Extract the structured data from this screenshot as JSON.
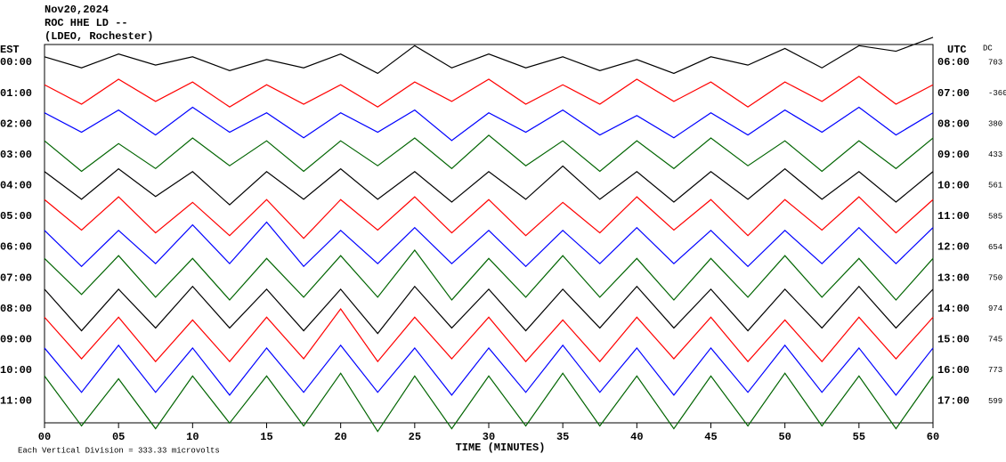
{
  "chart_data": {
    "type": "helicorder",
    "title": "Nov20,2024",
    "subtitle": "ROC HHE LD --",
    "station": "(LDEO, Rochester)",
    "left_axis_label": "EST",
    "right_axis_label": "UTC",
    "dc_label": "DC",
    "xlabel": "TIME (MINUTES)",
    "footnote": "Each Vertical Division =  333.33 microvolts",
    "xlim": [
      0,
      60
    ],
    "xticks": [
      {
        "value": 0,
        "label": "00"
      },
      {
        "value": 5,
        "label": "05"
      },
      10,
      15,
      20,
      25,
      30,
      35,
      40,
      45,
      50,
      55,
      60
    ],
    "x": [
      0,
      2.5,
      5,
      7.5,
      10,
      12.5,
      15,
      17.5,
      20,
      22.5,
      25,
      27.5,
      30,
      32.5,
      35,
      37.5,
      40,
      42.5,
      45,
      47.5,
      50,
      52.5,
      55,
      57.5,
      60
    ],
    "series": [
      {
        "name": "00:00",
        "utc": "06:00",
        "dc": 703,
        "color": "#000000",
        "values": [
          0.2,
          -0.2,
          0.3,
          -0.1,
          0.2,
          -0.3,
          0.1,
          -0.2,
          0.3,
          -0.4,
          0.6,
          -0.2,
          0.3,
          -0.2,
          0.2,
          -0.3,
          0.1,
          -0.4,
          0.2,
          -0.1,
          0.5,
          -0.2,
          0.6,
          0.4,
          0.9
        ]
      },
      {
        "name": "01:00",
        "utc": "07:00",
        "dc": -360,
        "color": "#ff0000",
        "values": [
          0.3,
          -0.4,
          0.5,
          -0.3,
          0.4,
          -0.5,
          0.3,
          -0.4,
          0.3,
          -0.5,
          0.4,
          -0.3,
          0.5,
          -0.4,
          0.3,
          -0.4,
          0.5,
          -0.3,
          0.4,
          -0.5,
          0.4,
          -0.3,
          0.6,
          -0.4,
          0.3
        ]
      },
      {
        "name": "02:00",
        "utc": "08:00",
        "dc": 380,
        "color": "#0000ff",
        "values": [
          0.4,
          -0.3,
          0.5,
          -0.4,
          0.6,
          -0.3,
          0.4,
          -0.5,
          0.4,
          -0.3,
          0.5,
          -0.6,
          0.4,
          -0.3,
          0.5,
          -0.4,
          0.3,
          -0.5,
          0.4,
          -0.4,
          0.5,
          -0.3,
          0.6,
          -0.4,
          0.4
        ]
      },
      {
        "name": "03:00",
        "utc": "09:00",
        "dc": 433,
        "color": "#006400",
        "values": [
          0.5,
          -0.6,
          0.4,
          -0.5,
          0.6,
          -0.4,
          0.5,
          -0.6,
          0.5,
          -0.4,
          0.6,
          -0.5,
          0.7,
          -0.4,
          0.5,
          -0.6,
          0.5,
          -0.5,
          0.6,
          -0.4,
          0.5,
          -0.6,
          0.5,
          -0.5,
          0.6
        ]
      },
      {
        "name": "04:00",
        "utc": "10:00",
        "dc": 561,
        "color": "#000000",
        "values": [
          0.5,
          -0.5,
          0.6,
          -0.4,
          0.5,
          -0.7,
          0.5,
          -0.5,
          0.6,
          -0.5,
          0.5,
          -0.6,
          0.5,
          -0.5,
          0.7,
          -0.5,
          0.5,
          -0.6,
          0.5,
          -0.5,
          0.6,
          -0.5,
          0.5,
          -0.6,
          0.5
        ]
      },
      {
        "name": "05:00",
        "utc": "11:00",
        "dc": 585,
        "color": "#ff0000",
        "values": [
          0.6,
          -0.5,
          0.7,
          -0.6,
          0.5,
          -0.7,
          0.6,
          -0.8,
          0.6,
          -0.5,
          0.7,
          -0.6,
          0.6,
          -0.7,
          0.5,
          -0.6,
          0.7,
          -0.5,
          0.6,
          -0.7,
          0.6,
          -0.5,
          0.7,
          -0.6,
          0.6
        ]
      },
      {
        "name": "06:00",
        "utc": "12:00",
        "dc": 654,
        "color": "#0000ff",
        "values": [
          0.6,
          -0.7,
          0.6,
          -0.6,
          0.8,
          -0.6,
          0.9,
          -0.7,
          0.6,
          -0.6,
          0.7,
          -0.6,
          0.6,
          -0.7,
          0.6,
          -0.6,
          0.7,
          -0.6,
          0.6,
          -0.7,
          0.6,
          -0.6,
          0.7,
          -0.6,
          0.7
        ]
      },
      {
        "name": "07:00",
        "utc": "13:00",
        "dc": 750,
        "color": "#006400",
        "values": [
          0.7,
          -0.6,
          0.8,
          -0.7,
          0.7,
          -0.8,
          0.7,
          -0.7,
          0.8,
          -0.7,
          1.0,
          -0.8,
          0.7,
          -0.7,
          0.8,
          -0.7,
          0.7,
          -0.8,
          0.7,
          -0.7,
          0.8,
          -0.7,
          0.7,
          -0.8,
          0.7
        ]
      },
      {
        "name": "08:00",
        "utc": "14:00",
        "dc": 974,
        "color": "#000000",
        "values": [
          0.7,
          -0.8,
          0.7,
          -0.7,
          0.8,
          -0.7,
          0.7,
          -0.8,
          0.7,
          -0.9,
          0.8,
          -0.7,
          0.7,
          -0.8,
          0.7,
          -0.7,
          0.8,
          -0.7,
          0.7,
          -0.8,
          0.7,
          -0.7,
          0.8,
          -0.7,
          0.7
        ]
      },
      {
        "name": "09:00",
        "utc": "15:00",
        "dc": 745,
        "color": "#ff0000",
        "values": [
          0.8,
          -0.7,
          0.8,
          -0.8,
          0.7,
          -0.8,
          0.8,
          -0.7,
          1.1,
          -0.8,
          0.8,
          -0.7,
          0.8,
          -0.8,
          0.7,
          -0.8,
          0.8,
          -0.7,
          0.8,
          -0.8,
          0.7,
          -0.8,
          0.8,
          -0.7,
          0.8
        ]
      },
      {
        "name": "10:00",
        "utc": "16:00",
        "dc": 773,
        "color": "#0000ff",
        "values": [
          0.8,
          -0.8,
          0.9,
          -0.8,
          0.8,
          -0.9,
          0.8,
          -0.8,
          0.9,
          -0.8,
          0.8,
          -0.9,
          0.8,
          -0.8,
          0.9,
          -0.8,
          0.8,
          -0.9,
          0.8,
          -0.8,
          0.9,
          -0.8,
          0.8,
          -0.9,
          0.8
        ]
      },
      {
        "name": "11:00",
        "utc": "17:00",
        "dc": 599,
        "color": "#006400",
        "values": [
          0.9,
          -0.9,
          0.8,
          -1.0,
          0.9,
          -0.8,
          0.9,
          -0.9,
          1.0,
          -1.1,
          0.9,
          -1.0,
          0.9,
          -0.9,
          1.0,
          -0.9,
          0.9,
          -1.0,
          0.9,
          -0.9,
          1.0,
          -0.9,
          0.9,
          -1.0,
          0.9
        ]
      }
    ]
  }
}
